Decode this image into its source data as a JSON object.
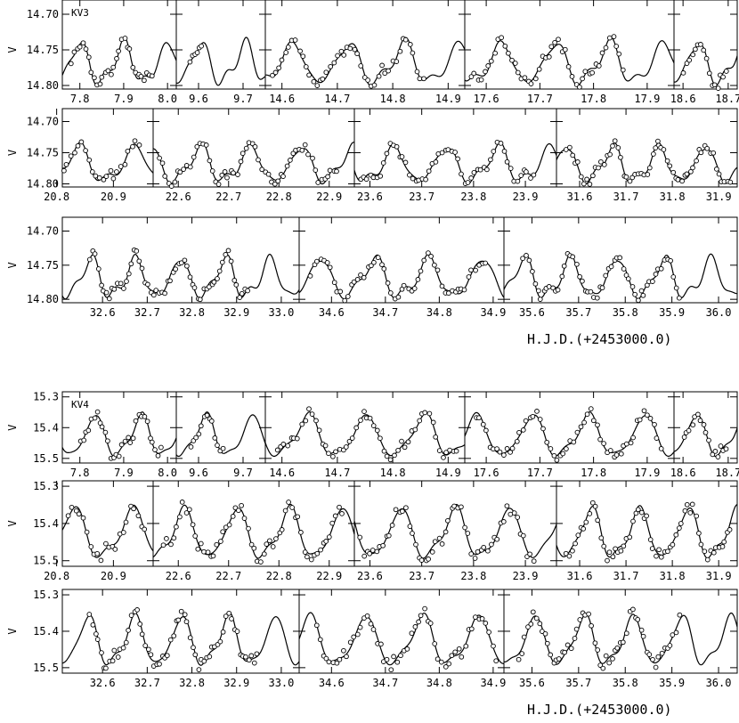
{
  "chart_data": {
    "type": "scatter",
    "x_title": "H.J.D.(+2453000.0)",
    "stars": [
      {
        "label": "KV3",
        "ylabel": "V",
        "yticks": [
          "14.70",
          "14.75",
          "14.80"
        ],
        "yvals": [
          14.7,
          14.75,
          14.8
        ],
        "ylim": [
          14.805,
          14.685
        ],
        "mean": 14.77,
        "amp": 0.026,
        "period": 0.1003,
        "rows": [
          [
            {
              "xmin": 7.76,
              "xmax": 8.02,
              "ticks": [
                "7.8",
                "7.9",
                "8.0"
              ],
              "tickvals": [
                7.8,
                7.9,
                8.0
              ],
              "ob": [
                7.78,
                7.97
              ]
            },
            {
              "xmin": 9.55,
              "xmax": 9.75,
              "ticks": [
                "9.6",
                "9.7"
              ],
              "tickvals": [
                9.6,
                9.7
              ],
              "ob": [
                9.58,
                9.61
              ]
            },
            {
              "xmin": 14.57,
              "xmax": 14.93,
              "ticks": [
                "14.6",
                "14.7",
                "14.8",
                "14.9"
              ],
              "tickvals": [
                14.6,
                14.7,
                14.8,
                14.9
              ],
              "ob": [
                14.58,
                14.86
              ]
            },
            {
              "xmin": 17.56,
              "xmax": 17.95,
              "ticks": [
                "17.6",
                "17.7",
                "17.8",
                "17.9"
              ],
              "tickvals": [
                17.6,
                17.7,
                17.8,
                17.9
              ],
              "ob": [
                17.57,
                17.86
              ]
            },
            {
              "xmin": 18.58,
              "xmax": 18.72,
              "ticks": [
                "18.6",
                "18.7"
              ],
              "tickvals": [
                18.6,
                18.7
              ],
              "ob": [
                18.6,
                18.7
              ]
            }
          ],
          [
            {
              "xmin": 20.81,
              "xmax": 20.97,
              "ticks": [
                "20.8",
                "20.9"
              ],
              "tickvals": [
                20.8,
                20.9
              ],
              "ob": [
                20.81,
                20.95
              ]
            },
            {
              "xmin": 22.55,
              "xmax": 22.95,
              "ticks": [
                "22.6",
                "22.7",
                "22.8",
                "22.9"
              ],
              "tickvals": [
                22.6,
                22.7,
                22.8,
                22.9
              ],
              "ob": [
                22.56,
                22.92
              ]
            },
            {
              "xmin": 23.57,
              "xmax": 23.96,
              "ticks": [
                "23.6",
                "23.7",
                "23.8",
                "23.9"
              ],
              "tickvals": [
                23.6,
                23.7,
                23.8,
                23.9
              ],
              "ob": [
                23.58,
                23.92
              ]
            },
            {
              "xmin": 31.55,
              "xmax": 31.94,
              "ticks": [
                "31.6",
                "31.7",
                "31.8",
                "31.9"
              ],
              "tickvals": [
                31.6,
                31.7,
                31.8,
                31.9
              ],
              "ob": [
                31.57,
                31.93
              ]
            }
          ],
          [
            {
              "xmin": 32.51,
              "xmax": 33.04,
              "ticks": [
                "32.6",
                "32.7",
                "32.8",
                "32.9",
                "33.0"
              ],
              "tickvals": [
                32.6,
                32.7,
                32.8,
                32.9,
                33.0
              ],
              "ob": [
                32.57,
                32.93
              ]
            },
            {
              "xmin": 34.54,
              "xmax": 34.92,
              "ticks": [
                "34.6",
                "34.7",
                "34.8",
                "34.9"
              ],
              "tickvals": [
                34.6,
                34.7,
                34.8,
                34.9
              ],
              "ob": [
                34.56,
                34.89
              ]
            },
            {
              "xmin": 35.54,
              "xmax": 36.04,
              "ticks": [
                "35.6",
                "35.7",
                "35.8",
                "35.9",
                "36.0"
              ],
              "tickvals": [
                35.6,
                35.7,
                35.8,
                35.9,
                36.0
              ],
              "ob": [
                35.58,
                35.92
              ]
            }
          ]
        ]
      },
      {
        "label": "KV4",
        "ylabel": "V",
        "yticks": [
          "15.3",
          "15.4",
          "15.5"
        ],
        "yvals": [
          15.3,
          15.4,
          15.5
        ],
        "ylim": [
          15.515,
          15.295
        ],
        "mean": 15.43,
        "amp": 0.062,
        "period": 0.1048,
        "rows": [
          [
            {
              "xmin": 7.76,
              "xmax": 8.02,
              "ticks": [
                "7.8",
                "7.9",
                "8.0"
              ],
              "tickvals": [
                7.8,
                7.9,
                8.0
              ],
              "ob": [
                7.8,
                7.99
              ]
            },
            {
              "xmin": 9.55,
              "xmax": 9.75,
              "ticks": [
                "9.6",
                "9.7"
              ],
              "tickvals": [
                9.6,
                9.7
              ],
              "ob": [
                9.58,
                9.66
              ]
            },
            {
              "xmin": 14.57,
              "xmax": 14.93,
              "ticks": [
                "14.6",
                "14.7",
                "14.8",
                "14.9"
              ],
              "tickvals": [
                14.6,
                14.7,
                14.8,
                14.9
              ],
              "ob": [
                14.59,
                14.92
              ]
            },
            {
              "xmin": 17.56,
              "xmax": 17.95,
              "ticks": [
                "17.6",
                "17.7",
                "17.8",
                "17.9"
              ],
              "tickvals": [
                17.6,
                17.7,
                17.8,
                17.9
              ],
              "ob": [
                17.58,
                17.93
              ]
            },
            {
              "xmin": 18.58,
              "xmax": 18.72,
              "ticks": [
                "18.6",
                "18.7"
              ],
              "tickvals": [
                18.6,
                18.7
              ],
              "ob": [
                18.6,
                18.7
              ]
            }
          ],
          [
            {
              "xmin": 20.81,
              "xmax": 20.97,
              "ticks": [
                "20.8",
                "20.9"
              ],
              "tickvals": [
                20.8,
                20.9
              ],
              "ob": [
                20.82,
                20.96
              ]
            },
            {
              "xmin": 22.55,
              "xmax": 22.95,
              "ticks": [
                "22.6",
                "22.7",
                "22.8",
                "22.9"
              ],
              "tickvals": [
                22.6,
                22.7,
                22.8,
                22.9
              ],
              "ob": [
                22.57,
                22.93
              ]
            },
            {
              "xmin": 23.57,
              "xmax": 23.96,
              "ticks": [
                "23.6",
                "23.7",
                "23.8",
                "23.9"
              ],
              "tickvals": [
                23.6,
                23.7,
                23.8,
                23.9
              ],
              "ob": [
                23.58,
                23.92
              ]
            },
            {
              "xmin": 31.55,
              "xmax": 31.94,
              "ticks": [
                "31.6",
                "31.7",
                "31.8",
                "31.9"
              ],
              "tickvals": [
                31.6,
                31.7,
                31.8,
                31.9
              ],
              "ob": [
                31.57,
                31.93
              ]
            }
          ],
          [
            {
              "xmin": 32.51,
              "xmax": 33.04,
              "ticks": [
                "32.6",
                "32.7",
                "32.8",
                "32.9",
                "33.0"
              ],
              "tickvals": [
                32.6,
                32.7,
                32.8,
                32.9,
                33.0
              ],
              "ob": [
                32.57,
                32.95
              ]
            },
            {
              "xmin": 34.54,
              "xmax": 34.92,
              "ticks": [
                "34.6",
                "34.7",
                "34.8",
                "34.9"
              ],
              "tickvals": [
                34.6,
                34.7,
                34.8,
                34.9
              ],
              "ob": [
                34.57,
                34.91
              ]
            },
            {
              "xmin": 35.54,
              "xmax": 36.04,
              "ticks": [
                "35.6",
                "35.7",
                "35.8",
                "35.9",
                "36.0"
              ],
              "tickvals": [
                35.6,
                35.7,
                35.8,
                35.9,
                36.0
              ],
              "ob": [
                35.57,
                35.92
              ]
            }
          ]
        ]
      }
    ]
  }
}
